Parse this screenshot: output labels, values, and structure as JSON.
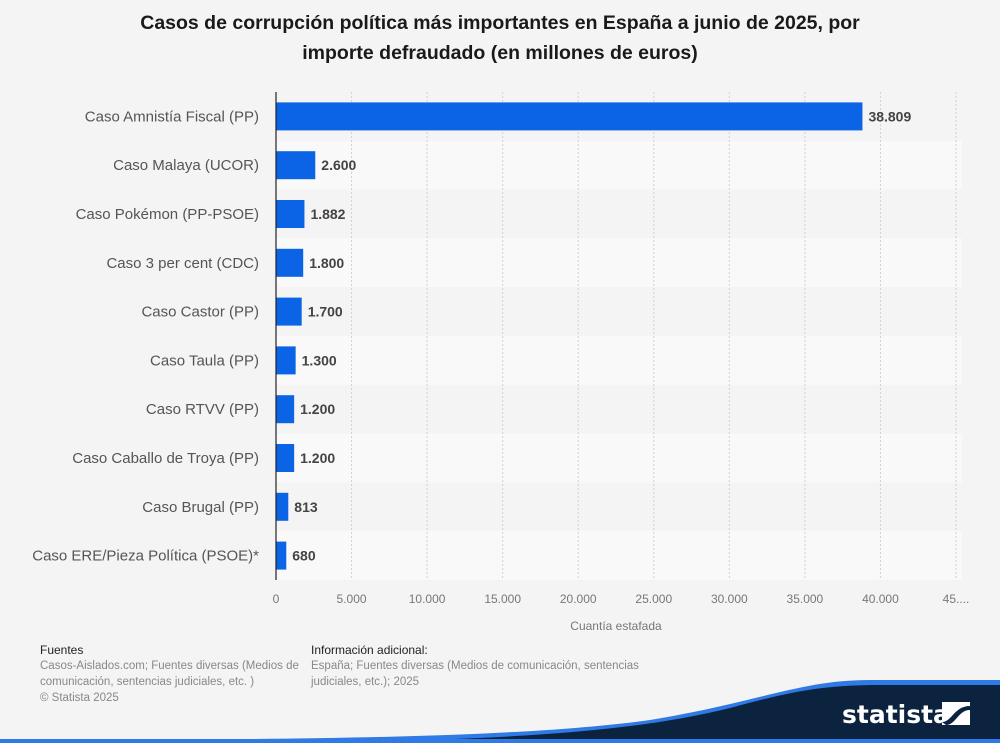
{
  "chart_data": {
    "type": "bar",
    "orientation": "horizontal",
    "title": "Casos de corrupción política más importantes en España a junio de 2025, por importe defraudado (en millones de euros)",
    "title_lines": [
      "Casos de corrupción política más importantes en España a junio de 2025, por",
      "importe defraudado (en millones de euros)"
    ],
    "categories": [
      "Caso Amnistía Fiscal (PP)",
      "Caso Malaya (UCOR)",
      "Caso Pokémon (PP-PSOE)",
      "Caso 3 per cent (CDC)",
      "Caso Castor (PP)",
      "Caso Taula (PP)",
      "Caso RTVV (PP)",
      "Caso Caballo de Troya (PP)",
      "Caso Brugal (PP)",
      "Caso ERE/Pieza Política (PSOE)*"
    ],
    "values": [
      38809,
      2600,
      1882,
      1800,
      1700,
      1300,
      1200,
      1200,
      813,
      680
    ],
    "value_labels": [
      "38.809",
      "2.600",
      "1.882",
      "1.800",
      "1.700",
      "1.300",
      "1.200",
      "1.200",
      "813",
      "680"
    ],
    "xlabel": "Cuantía estafada",
    "ylabel": "",
    "xlim": [
      0,
      45000
    ],
    "x_ticks": [
      0,
      5000,
      10000,
      15000,
      20000,
      25000,
      30000,
      35000,
      40000,
      45000
    ],
    "x_tick_labels": [
      "0",
      "5.000",
      "10.000",
      "15.000",
      "20.000",
      "25.000",
      "30.000",
      "35.000",
      "40.000",
      "45...."
    ],
    "grid": true,
    "bar_color": "#0b63e5"
  },
  "footer": {
    "sources_heading": "Fuentes",
    "sources_text": "Casos-Aislados.com; Fuentes diversas (Medios de comunicación, sentencias judiciales, etc. )",
    "copyright": "© Statista 2025",
    "additional_heading": "Información adicional:",
    "additional_text": "España; Fuentes diversas (Medios de comunicación, sentencias judiciales, etc.); 2025"
  },
  "brand": {
    "name": "statista",
    "colors": {
      "dark": "#0c2340",
      "accent": "#2f7ae5"
    }
  }
}
